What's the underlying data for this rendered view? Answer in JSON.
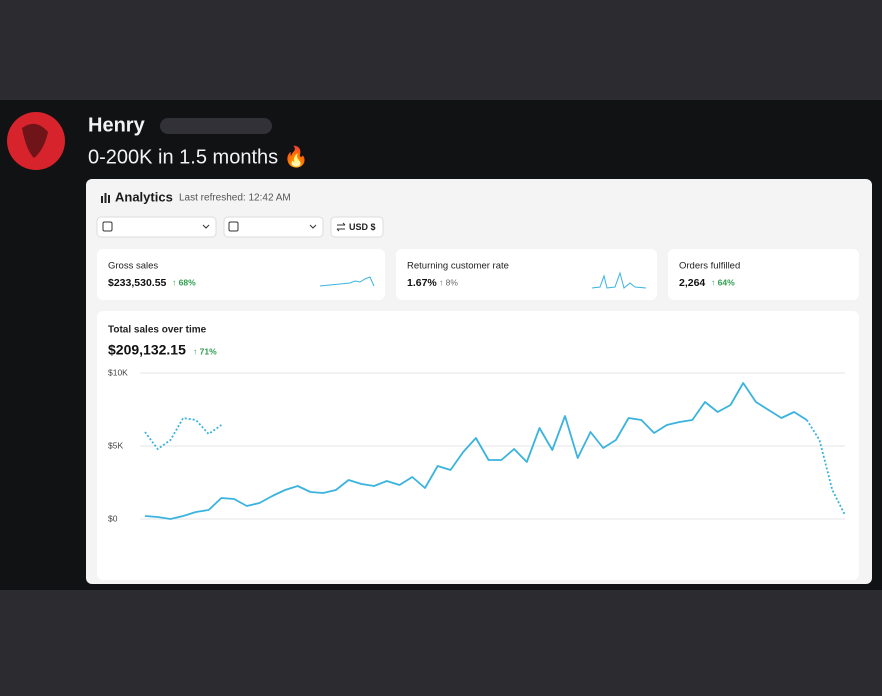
{
  "message": {
    "author": "Henry",
    "text": "0-200K in 1.5 months 🔥"
  },
  "dashboard": {
    "title": "Analytics",
    "refreshed": "Last refreshed: 12:42 AM",
    "currency": "USD $",
    "cards": [
      {
        "label": "Gross sales",
        "value": "$233,530.55",
        "change": "↑ 68%"
      },
      {
        "label": "Returning customer rate",
        "value": "1.67%",
        "change": "↑ 8%"
      },
      {
        "label": "Orders fulfilled",
        "value": "2,264",
        "change": "↑ 64%"
      }
    ]
  },
  "chart_data": {
    "type": "line",
    "title": "Total sales over time",
    "total": "$209,132.15",
    "change": "↑ 71%",
    "categories": [
      null,
      null,
      null,
      null,
      null,
      null,
      null,
      null,
      null,
      null,
      null,
      null,
      null,
      null,
      null,
      null,
      null,
      null,
      null,
      null,
      null,
      null,
      null,
      null,
      null,
      null,
      null,
      null,
      null,
      null,
      null,
      null,
      null,
      null,
      null,
      null,
      null,
      null,
      null,
      null,
      null,
      null,
      null,
      null,
      null,
      null,
      null,
      null,
      null,
      null,
      null,
      null,
      null,
      null,
      null,
      null
    ],
    "ylim": [
      0,
      10000
    ],
    "yticks": [
      {
        "value": 0,
        "label": "$0"
      },
      {
        "value": 5000,
        "label": "$5K"
      },
      {
        "value": 10000,
        "label": "$10K"
      }
    ],
    "grid": true,
    "series": [
      {
        "color": "#3ab3df",
        "values": [
          205,
          137,
          0,
          205,
          480,
          615,
          1440,
          1370,
          890,
          1095,
          1575,
          1985,
          2260,
          1850,
          1780,
          1985,
          2670,
          2395,
          2260,
          2605,
          2330,
          2875,
          2125,
          3630,
          3355,
          4590,
          5550,
          4040,
          4040,
          4795,
          3905,
          6235,
          4725,
          7055,
          4180,
          5960,
          4865,
          5410,
          6920,
          6780,
          5890,
          6440,
          6645,
          6780,
          8015,
          7330,
          7810,
          9315,
          8015,
          7465,
          6920,
          7330,
          6780,
          5410,
          1985,
          275
        ]
      },
      {
        "color": "#3ab3df",
        "dashed": true,
        "values": [
          5960,
          4790,
          5410,
          6920,
          6780,
          5820,
          6440,
          null,
          null,
          null,
          null,
          null,
          null,
          null,
          null,
          null,
          null,
          null,
          null,
          null,
          null,
          null,
          null,
          null,
          null,
          null,
          null,
          null,
          null,
          null,
          null,
          null,
          null,
          null,
          null,
          null,
          null,
          null,
          null,
          null,
          null,
          null,
          null,
          null,
          null,
          null,
          null,
          null,
          null,
          null,
          null,
          null,
          null,
          null,
          null,
          null
        ]
      }
    ]
  }
}
